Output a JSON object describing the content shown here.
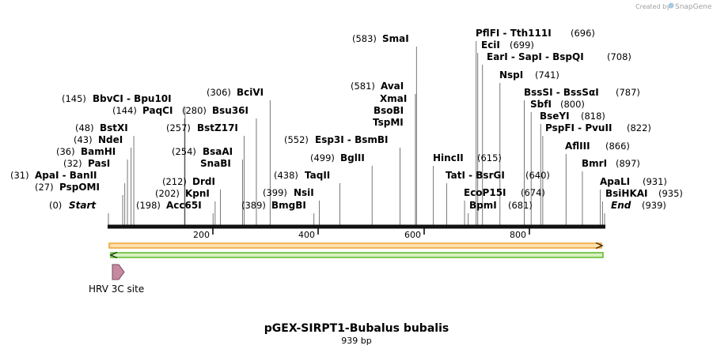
{
  "credit": {
    "prefix": "Created by",
    "brand": "SnapGene"
  },
  "title": "pGEX-SIRPT1-Bubalus bubalis",
  "length_label": "939 bp",
  "length": 939,
  "ticks": [
    200,
    400,
    600,
    800
  ],
  "colors": {
    "backbone": "#111111",
    "feature_top": "#f0a030",
    "feature_top_fill": "#fbe1b0",
    "feature_bottom": "#5ab82a",
    "feature_bottom_fill": "#d8f0c0",
    "site_fill": "#c58aa0",
    "site_stroke": "#7a4a60"
  },
  "features": [
    {
      "label": "HRV 3C site",
      "start": 27,
      "end": 44
    }
  ],
  "left_sites": [
    {
      "pos_label": "(0)",
      "name": "Start",
      "italic": true,
      "pos": 0
    },
    {
      "pos_label": "(27)",
      "name": "PspOMI",
      "pos": 27
    },
    {
      "pos_label": "(31)",
      "name": "ApaI  - BanII",
      "pos": 31
    },
    {
      "pos_label": "(32)",
      "name": "PasI",
      "pos": 32
    },
    {
      "pos_label": "(36)",
      "name": "BamHI",
      "pos": 36
    },
    {
      "pos_label": "(43)",
      "name": "NdeI",
      "pos": 43
    },
    {
      "pos_label": "(48)",
      "name": "BstXI",
      "pos": 48
    },
    {
      "pos_label": "(144)",
      "name": "PaqCI",
      "pos": 144
    },
    {
      "pos_label": "(145)",
      "name": "BbvCI  - Bpu10I",
      "pos": 145
    },
    {
      "pos_label": "(198)",
      "name": "Acc65I",
      "pos": 198,
      "name_first": true
    },
    {
      "pos_label": "(202)",
      "name": "KpnI",
      "pos": 202
    },
    {
      "pos_label": "(212)",
      "name": "DrdI",
      "pos": 212
    },
    {
      "pos_label": "(254)",
      "name": "BsaAI",
      "pos": 254
    },
    {
      "pos_label": "",
      "name": "SnaBI",
      "pos": 254
    },
    {
      "pos_label": "(257)",
      "name": "BstZ17I",
      "pos": 257
    },
    {
      "pos_label": "(280)",
      "name": "Bsu36I",
      "pos": 280
    },
    {
      "pos_label": "(306)",
      "name": "BciVI",
      "pos": 306
    },
    {
      "pos_label": "(389)",
      "name": "BmgBI",
      "pos": 389
    },
    {
      "pos_label": "(399)",
      "name": "NsiI",
      "pos": 399
    },
    {
      "pos_label": "(438)",
      "name": "TaqII",
      "pos": 438
    },
    {
      "pos_label": "(499)",
      "name": "BglII",
      "pos": 499
    },
    {
      "pos_label": "(552)",
      "name": "Esp3I  - BsmBI",
      "pos": 552
    },
    {
      "pos_label": "(581)",
      "name": "AvaI",
      "pos": 581
    },
    {
      "pos_label": "",
      "name": "XmaI",
      "pos": 581
    },
    {
      "pos_label": "",
      "name": "BsoBI",
      "pos": 581
    },
    {
      "pos_label": "",
      "name": "TspMI",
      "pos": 581
    },
    {
      "pos_label": "(583)",
      "name": "SmaI",
      "pos": 583
    }
  ],
  "right_sites": [
    {
      "name": "HincII",
      "pos_label": "(615)",
      "pos": 615
    },
    {
      "name": "TatI  - BsrGI",
      "pos_label": "(640)",
      "pos": 640
    },
    {
      "name": "EcoP15I",
      "pos_label": "(674)",
      "pos": 674
    },
    {
      "name": "BpmI",
      "pos_label": "(681)",
      "pos": 681
    },
    {
      "name": "PflFI  - Tth111I",
      "pos_label": "(696)",
      "pos": 696
    },
    {
      "name": "EciI",
      "pos_label": "(699)",
      "pos": 699
    },
    {
      "name": "EarI  - SapI  - BspQI",
      "pos_label": "(708)",
      "pos": 708
    },
    {
      "name": "NspI",
      "pos_label": "(741)",
      "pos": 741
    },
    {
      "name": "BssSI  - BssSαI",
      "pos_label": "(787)",
      "pos": 787
    },
    {
      "name": "SbfI",
      "pos_label": "(800)",
      "pos": 800
    },
    {
      "name": "BseYI",
      "pos_label": "(818)",
      "pos": 818
    },
    {
      "name": "PspFI  - PvuII",
      "pos_label": "(822)",
      "pos": 822
    },
    {
      "name": "AflIII",
      "pos_label": "(866)",
      "pos": 866
    },
    {
      "name": "BmrI",
      "pos_label": "(897)",
      "pos": 897
    },
    {
      "name": "ApaLI",
      "pos_label": "(931)",
      "pos": 931
    },
    {
      "name": "BsiHKAI",
      "pos_label": "(935)",
      "pos": 935
    },
    {
      "name": "End",
      "italic": true,
      "pos_label": "(939)",
      "pos": 939
    }
  ]
}
